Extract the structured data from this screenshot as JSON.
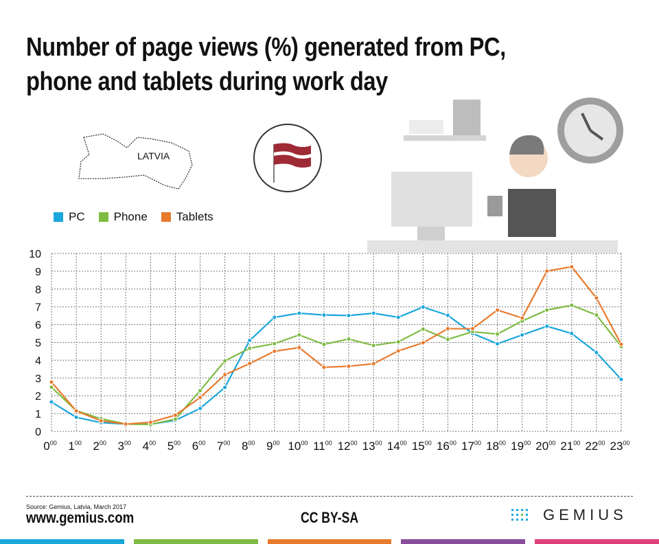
{
  "title_line1": "Number of page views (%) generated from PC,",
  "title_line2": "phone and tablets during work day",
  "map_label": "LATVIA",
  "legend": [
    {
      "name": "PC",
      "color": "#1ba6dc"
    },
    {
      "name": "Phone",
      "color": "#7dbb42"
    },
    {
      "name": "Tablets",
      "color": "#e87a2c"
    }
  ],
  "chart_data": {
    "type": "line",
    "title": "Number of page views (%) generated from PC, phone and tablets during work day",
    "x": [
      "0",
      "1",
      "2",
      "3",
      "4",
      "5",
      "6",
      "7",
      "8",
      "9",
      "10",
      "11",
      "12",
      "13",
      "14",
      "15",
      "16",
      "17",
      "18",
      "19",
      "20",
      "21",
      "22",
      "23"
    ],
    "x_suffix": "00",
    "ylim": [
      0,
      10
    ],
    "yticks": [
      "0",
      "1",
      "2",
      "3",
      "4",
      "5",
      "6",
      "7",
      "8",
      "9",
      "10"
    ],
    "grid": true,
    "legend_position": "top-left",
    "series": [
      {
        "name": "PC",
        "color": "#1ba6dc",
        "values": [
          1.65,
          0.79,
          0.49,
          0.41,
          0.4,
          0.62,
          1.29,
          2.47,
          5.11,
          6.41,
          6.64,
          6.54,
          6.51,
          6.64,
          6.41,
          6.99,
          6.52,
          5.5,
          4.92,
          5.42,
          5.91,
          5.5,
          4.43,
          2.92
        ]
      },
      {
        "name": "Phone",
        "color": "#7dbb42",
        "values": [
          2.48,
          1.16,
          0.71,
          0.41,
          0.39,
          0.69,
          2.29,
          3.96,
          4.67,
          4.93,
          5.42,
          4.89,
          5.19,
          4.83,
          5.03,
          5.75,
          5.17,
          5.6,
          5.47,
          6.2,
          6.82,
          7.09,
          6.54,
          4.76
        ]
      },
      {
        "name": "Tablets",
        "color": "#e87a2c",
        "values": [
          2.77,
          1.15,
          0.59,
          0.41,
          0.51,
          0.91,
          1.9,
          3.18,
          3.81,
          4.5,
          4.71,
          3.6,
          3.66,
          3.8,
          4.52,
          4.98,
          5.77,
          5.77,
          6.82,
          6.37,
          9.01,
          9.25,
          7.49,
          4.89
        ]
      }
    ]
  },
  "footer": {
    "source": "Source: Gemius, Latvia, March 2017",
    "site": "www.gemius.com",
    "license": "CC BY-SA",
    "logo": "GEMIUS"
  },
  "bottom_bar_colors": [
    "#1ba6dc",
    "#7dbb42",
    "#e87a2c",
    "#8a4d9c",
    "#e0407a"
  ]
}
